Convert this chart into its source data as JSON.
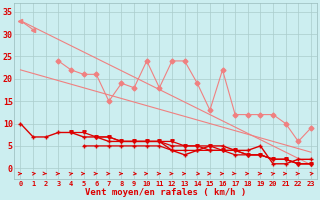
{
  "x": [
    0,
    1,
    2,
    3,
    4,
    5,
    6,
    7,
    8,
    9,
    10,
    11,
    12,
    13,
    14,
    15,
    16,
    17,
    18,
    19,
    20,
    21,
    22,
    23
  ],
  "line_trend1": [
    33,
    31.6,
    30.2,
    28.8,
    27.4,
    26.0,
    24.6,
    23.2,
    21.8,
    20.4,
    19.0,
    17.6,
    16.2,
    14.8,
    13.4,
    12.0,
    10.6,
    9.2,
    7.8,
    6.4,
    5.0,
    3.6,
    2.2,
    0.8
  ],
  "line_trend2": [
    22,
    21.2,
    20.4,
    19.6,
    18.8,
    18.0,
    17.2,
    16.4,
    15.6,
    14.8,
    14.0,
    13.2,
    12.4,
    11.6,
    10.8,
    10.0,
    9.2,
    8.4,
    7.6,
    6.8,
    6.0,
    5.2,
    4.4,
    3.6
  ],
  "line_pink_jagged": [
    null,
    null,
    null,
    24,
    22,
    21,
    21,
    15,
    19,
    18,
    24,
    18,
    24,
    24,
    19,
    13,
    22,
    12,
    12,
    12,
    12,
    10,
    6,
    9
  ],
  "line_pink_top": [
    33,
    31,
    null,
    null,
    null,
    null,
    null,
    null,
    null,
    null,
    null,
    null,
    null,
    null,
    null,
    null,
    null,
    null,
    null,
    null,
    null,
    null,
    null,
    null
  ],
  "line_dark1": [
    10,
    7,
    7,
    8,
    8,
    7,
    7,
    6,
    6,
    6,
    6,
    6,
    4,
    3,
    4,
    5,
    5,
    4,
    4,
    5,
    1,
    1,
    2,
    2
  ],
  "line_dark2": [
    null,
    null,
    null,
    null,
    8,
    8,
    7,
    7,
    6,
    6,
    6,
    6,
    6,
    5,
    5,
    5,
    4,
    4,
    3,
    3,
    2,
    2,
    1,
    1
  ],
  "line_dark3": [
    null,
    null,
    null,
    null,
    null,
    5,
    5,
    5,
    5,
    5,
    5,
    5,
    4,
    4,
    4,
    4,
    4,
    3,
    3,
    3,
    2,
    2,
    1,
    1
  ],
  "line_dark4": [
    null,
    null,
    null,
    null,
    null,
    null,
    7,
    7,
    6,
    6,
    6,
    6,
    5,
    5,
    5,
    4,
    4,
    4,
    3,
    3,
    2,
    2,
    1,
    1
  ],
  "arrow_angles": [
    0,
    45,
    -30,
    0,
    60,
    0,
    0,
    0,
    0,
    -45,
    0,
    0,
    0,
    0,
    -45,
    0,
    0,
    -30,
    0,
    0,
    60,
    0,
    0,
    45
  ],
  "bg_color": "#cceef0",
  "grid_color": "#aacccc",
  "light_pink": "#f08080",
  "dark_red": "#dd0000",
  "xlabel": "Vent moyen/en rafales ( km/h )",
  "ylim": [
    -2.5,
    37
  ],
  "xlim": [
    -0.5,
    23.5
  ],
  "yticks": [
    0,
    5,
    10,
    15,
    20,
    25,
    30,
    35
  ]
}
